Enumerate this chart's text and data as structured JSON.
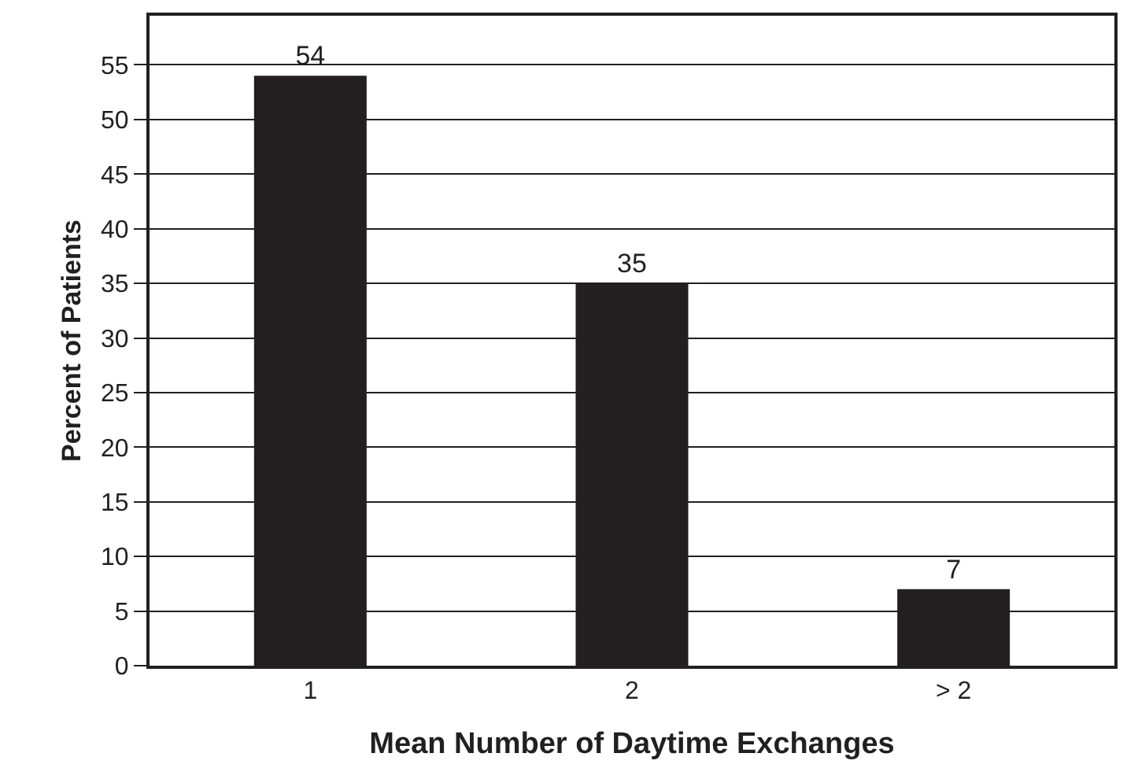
{
  "chart_data": {
    "type": "bar",
    "xlabel": "Mean Number of Daytime Exchanges",
    "ylabel": "Percent of Patients",
    "categories": [
      "1",
      "2",
      "> 2"
    ],
    "values": [
      54,
      35,
      7
    ],
    "color": "#231f20",
    "data_labels": true,
    "ylim": [
      0,
      59.5
    ],
    "yticks": [
      0,
      5,
      10,
      15,
      20,
      25,
      30,
      35,
      40,
      45,
      50,
      55
    ],
    "grid": "y",
    "legend": false
  }
}
